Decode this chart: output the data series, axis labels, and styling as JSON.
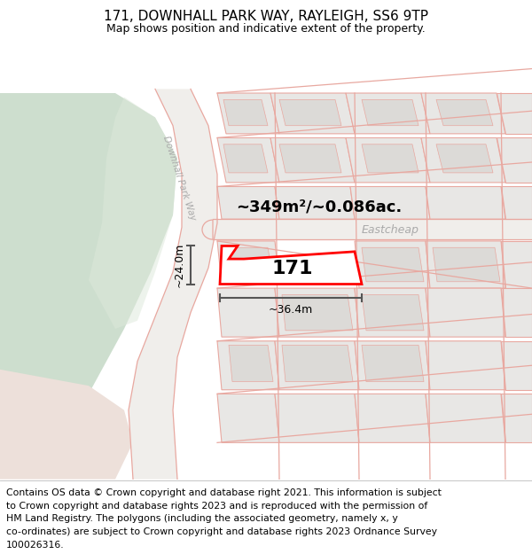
{
  "title": "171, DOWNHALL PARK WAY, RAYLEIGH, SS6 9TP",
  "subtitle": "Map shows position and indicative extent of the property.",
  "area_label": "~349m²/~0.086ac.",
  "width_label": "~36.4m",
  "height_label": "~24.0m",
  "property_number": "171",
  "road_label_1": "Downhall Park Way",
  "road_label_2": "Eastcheap",
  "map_bg": "#f7f6f4",
  "green_color": "#cddece",
  "green2_color": "#dde8da",
  "pink_color": "#ede0da",
  "road_fill": "#f0eeeb",
  "block_fill": "#e8e7e5",
  "block_outline": "#e8a8a0",
  "road_line_color": "#e8a8a0",
  "property_fill": "#ffffff",
  "property_outline": "#ff0000",
  "meas_color": "#555555",
  "title_fontsize": 11,
  "subtitle_fontsize": 9,
  "footnote_fontsize": 7.8,
  "footnote_lines": [
    "Contains OS data © Crown copyright and database right 2021. This information is subject",
    "to Crown copyright and database rights 2023 and is reproduced with the permission of",
    "HM Land Registry. The polygons (including the associated geometry, namely x, y",
    "co-ordinates) are subject to Crown copyright and database rights 2023 Ordnance Survey",
    "100026316."
  ]
}
